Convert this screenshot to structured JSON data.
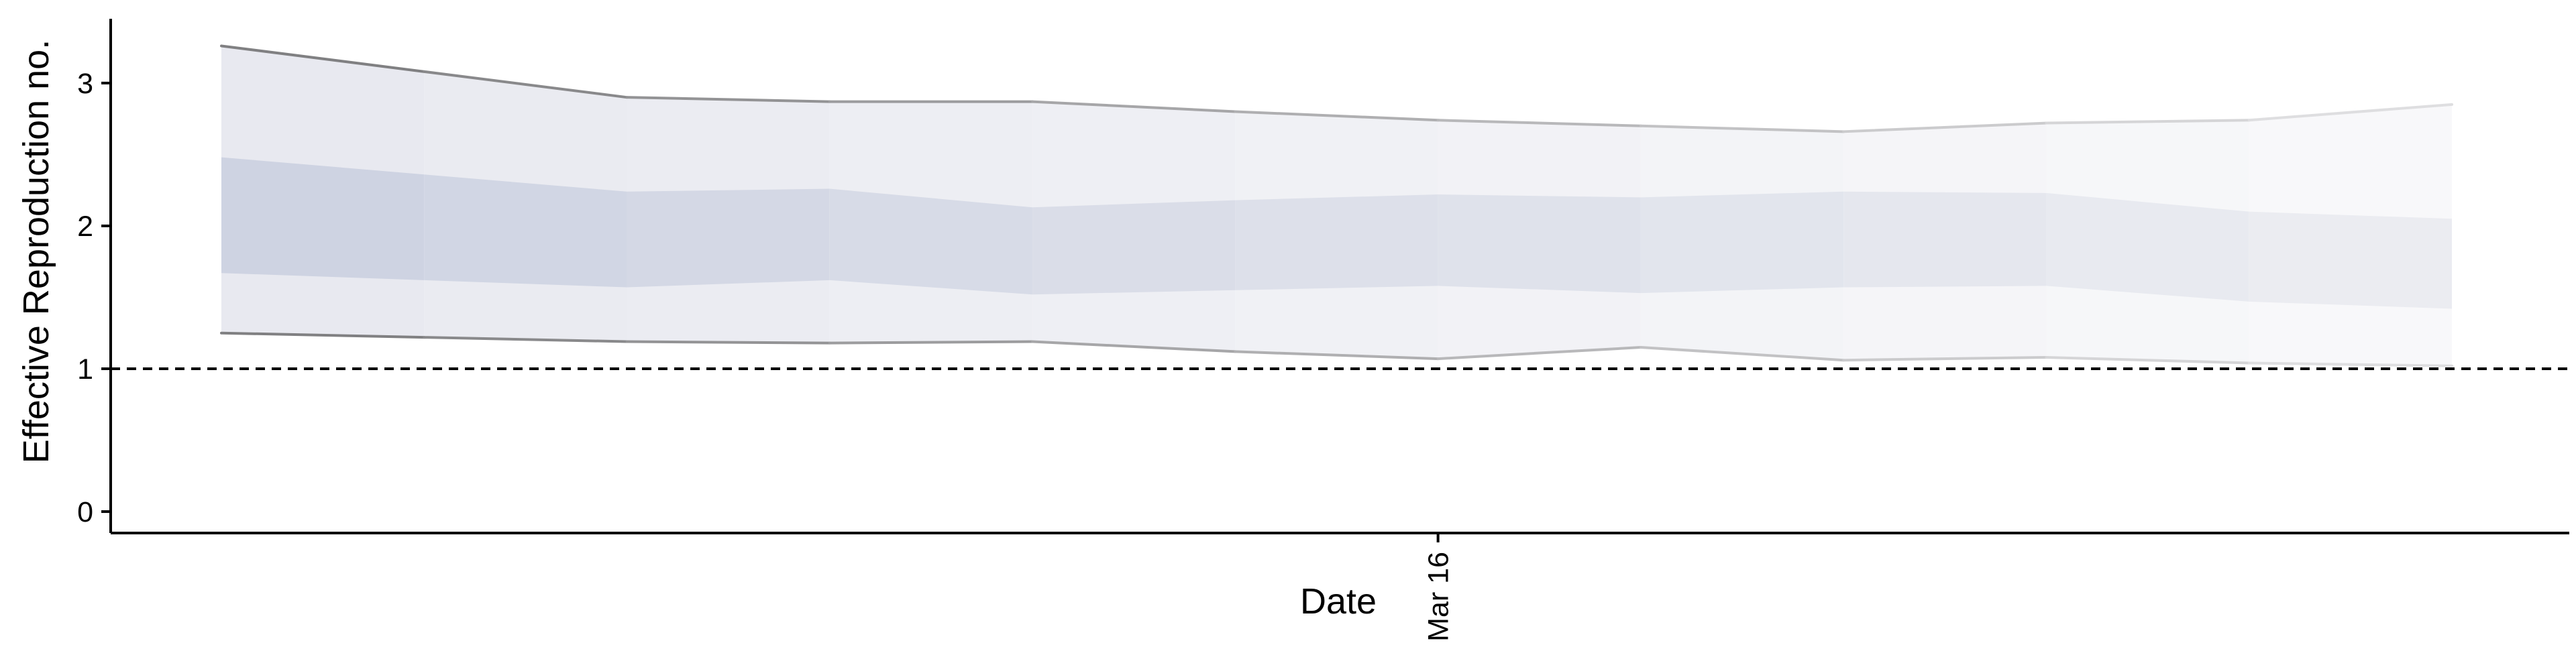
{
  "chart_data": {
    "type": "area",
    "title": "",
    "xlabel": "Date",
    "ylabel": "Effective Reproduction no.",
    "x_tick_labels": [
      "Mar 16"
    ],
    "y_tick_labels": [
      "0",
      "1",
      "2",
      "3"
    ],
    "ylim": [
      -0.15,
      3.45
    ],
    "reference_line": {
      "y": 1,
      "style": "dashed"
    },
    "legend": "none",
    "grid": false,
    "dates": [
      "Mar 10",
      "Mar 11",
      "Mar 12",
      "Mar 13",
      "Mar 14",
      "Mar 15",
      "Mar 16",
      "Mar 17",
      "Mar 18",
      "Mar 19",
      "Mar 20",
      "Mar 21"
    ],
    "series": [
      {
        "upper_90": [
          3.26,
          3.08,
          2.9,
          2.87,
          2.87,
          2.8,
          2.74,
          2.7,
          2.66,
          2.72,
          2.74,
          2.85
        ],
        "upper_50": [
          2.48,
          2.36,
          2.24,
          2.26,
          2.13,
          2.18,
          2.22,
          2.2,
          2.24,
          2.23,
          2.1,
          2.05
        ],
        "lower_50": [
          1.67,
          1.62,
          1.57,
          1.62,
          1.52,
          1.55,
          1.58,
          1.53,
          1.57,
          1.58,
          1.47,
          1.42
        ],
        "lower_90": [
          1.25,
          1.22,
          1.19,
          1.18,
          1.19,
          1.12,
          1.07,
          1.15,
          1.06,
          1.08,
          1.04,
          1.02
        ]
      }
    ]
  }
}
